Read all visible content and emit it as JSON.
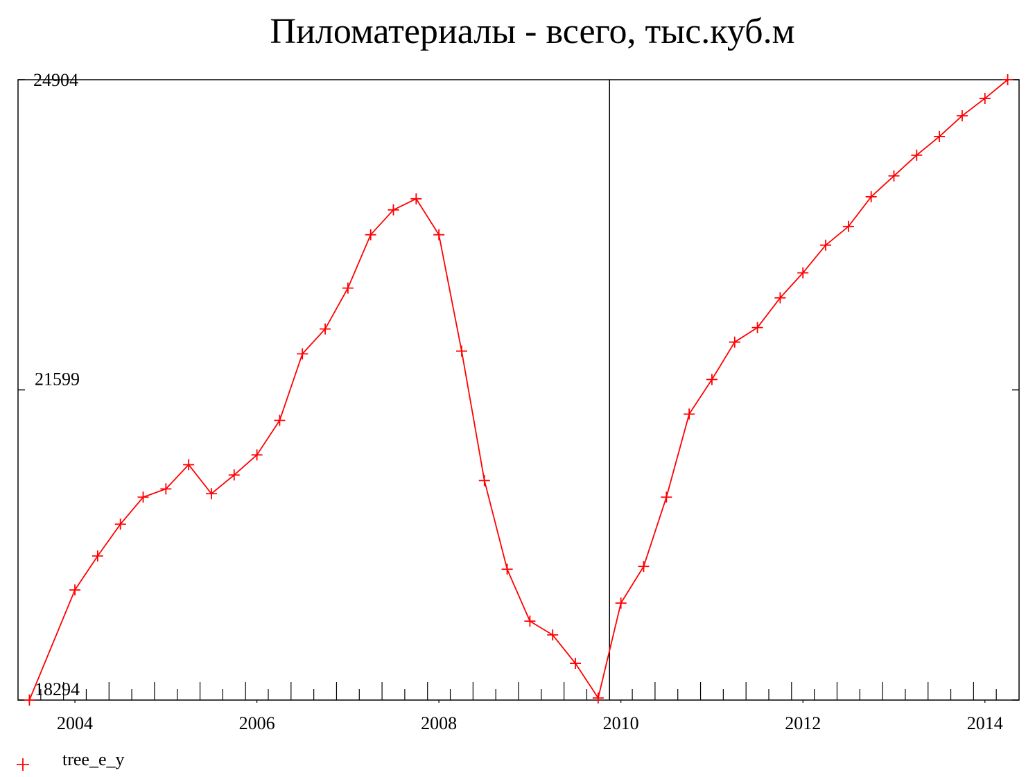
{
  "chart_data": {
    "type": "line",
    "title": "Пиломатериалы - всего, тыс.куб.м",
    "x": [
      2003.5,
      2004,
      2004.25,
      2004.5,
      2004.75,
      2005,
      2005.25,
      2005.5,
      2005.75,
      2006,
      2006.25,
      2006.5,
      2006.75,
      2007,
      2007.25,
      2007.5,
      2007.75,
      2008,
      2008.25,
      2008.5,
      2008.75,
      2009,
      2009.25,
      2009.5,
      2009.75,
      2010,
      2010.25,
      2010.5,
      2010.75,
      2011,
      2011.25,
      2011.5,
      2011.75,
      2012,
      2012.25,
      2012.5,
      2012.75,
      2013,
      2013.25,
      2013.5,
      2013.75,
      2014,
      2014.25
    ],
    "series": [
      {
        "name": "tree_e_y",
        "color": "#ff0000",
        "values": [
          18294,
          19467,
          19829,
          20168,
          20456,
          20544,
          20802,
          20493,
          20692,
          20906,
          21274,
          21983,
          22248,
          22684,
          23252,
          23517,
          23635,
          23252,
          22012,
          20633,
          19688,
          19135,
          18988,
          18685,
          18316,
          19327,
          19718,
          20456,
          21341,
          21710,
          22108,
          22263,
          22580,
          22846,
          23141,
          23340,
          23657,
          23879,
          24100,
          24299,
          24520,
          24705,
          24904
        ]
      }
    ],
    "xlim": [
      2003.375,
      2014.375
    ],
    "xticks": [
      2004,
      2006,
      2008,
      2010,
      2012,
      2014
    ],
    "ylim": [
      18294,
      24904
    ],
    "yticks": [
      18294,
      21599,
      24904
    ],
    "forecast_start": 2009.875
  }
}
